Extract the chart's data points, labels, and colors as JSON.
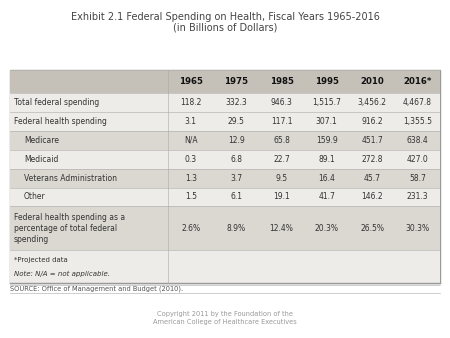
{
  "title_line1": "Exhibit 2.1 Federal Spending on Health, Fiscal Years 1965-2016",
  "title_line2": "(in Billions of Dollars)",
  "source": "SOURCE: Office of Management and Budget (2010).",
  "copyright": "Copyright 2011 by the Foundation of the\nAmerican College of Healthcare Executives",
  "columns": [
    "1965",
    "1975",
    "1985",
    "1995",
    "2010",
    "2016*"
  ],
  "rows": [
    {
      "label": "Total federal spending",
      "values": [
        "118.2",
        "332.3",
        "946.3",
        "1,515.7",
        "3,456.2",
        "4,467.8"
      ],
      "indent": false,
      "shaded": false
    },
    {
      "label": "Federal health spending",
      "values": [
        "3.1",
        "29.5",
        "117.1",
        "307.1",
        "916.2",
        "1,355.5"
      ],
      "indent": false,
      "shaded": false
    },
    {
      "label": "Medicare",
      "values": [
        "N/A",
        "12.9",
        "65.8",
        "159.9",
        "451.7",
        "638.4"
      ],
      "indent": true,
      "shaded": true
    },
    {
      "label": "Medicaid",
      "values": [
        "0.3",
        "6.8",
        "22.7",
        "89.1",
        "272.8",
        "427.0"
      ],
      "indent": true,
      "shaded": false
    },
    {
      "label": "Veterans Administration",
      "values": [
        "1.3",
        "3.7",
        "9.5",
        "16.4",
        "45.7",
        "58.7"
      ],
      "indent": true,
      "shaded": true
    },
    {
      "label": "Other",
      "values": [
        "1.5",
        "6.1",
        "19.1",
        "41.7",
        "146.2",
        "231.3"
      ],
      "indent": true,
      "shaded": false
    },
    {
      "label": "Federal health spending as a\npercentage of total federal\nspending",
      "values": [
        "2.6%",
        "8.9%",
        "12.4%",
        "20.3%",
        "26.5%",
        "30.3%"
      ],
      "indent": false,
      "shaded": true
    }
  ],
  "footnote1": "*Projected data",
  "footnote2": "Note: N/A = not applicable.",
  "bg_color": "#eeece9",
  "header_bg": "#c5c0b8",
  "shaded_row_bg": "#dbd8d2",
  "white_row_bg": "#eeece9",
  "text_color": "#333333"
}
